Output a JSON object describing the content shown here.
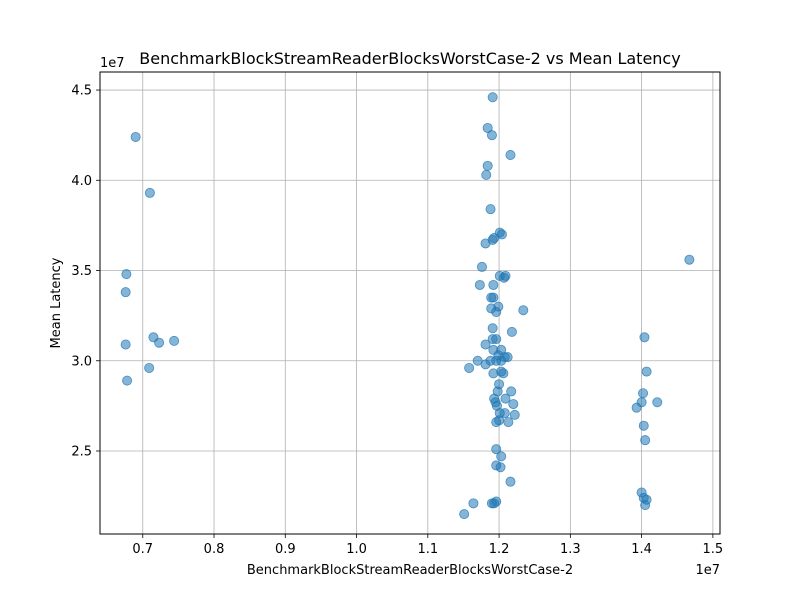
{
  "chart_data": {
    "type": "scatter",
    "title": "BenchmarkBlockStreamReaderBlocksWorstCase-2 vs Mean Latency",
    "xlabel": "BenchmarkBlockStreamReaderBlocksWorstCase-2",
    "ylabel": "Mean Latency",
    "x_offset_label": "1e7",
    "y_offset_label": "1e7",
    "xlim": [
      0.64,
      1.51
    ],
    "ylim": [
      2.04,
      4.6
    ],
    "x_ticks": [
      0.7,
      0.8,
      0.9,
      1.0,
      1.1,
      1.2,
      1.3,
      1.4,
      1.5
    ],
    "x_tick_labels": [
      "0.7",
      "0.8",
      "0.9",
      "1.0",
      "1.1",
      "1.2",
      "1.3",
      "1.4",
      "1.5"
    ],
    "y_ticks": [
      2.5,
      3.0,
      3.5,
      4.0,
      4.5
    ],
    "y_tick_labels": [
      "2.5",
      "3.0",
      "3.5",
      "4.0",
      "4.5"
    ],
    "grid": true,
    "marker_color": "#1f77b4",
    "marker_alpha": 0.55,
    "series": [
      {
        "points": [
          [
            0.69,
            4.24
          ],
          [
            0.71,
            3.93
          ],
          [
            0.677,
            3.48
          ],
          [
            0.676,
            3.38
          ],
          [
            0.676,
            3.09
          ],
          [
            0.678,
            2.89
          ],
          [
            0.715,
            3.13
          ],
          [
            0.723,
            3.1
          ],
          [
            0.744,
            3.11
          ],
          [
            0.709,
            2.96
          ],
          [
            1.191,
            4.46
          ],
          [
            1.184,
            4.29
          ],
          [
            1.19,
            4.25
          ],
          [
            1.216,
            4.14
          ],
          [
            1.184,
            4.08
          ],
          [
            1.182,
            4.03
          ],
          [
            1.188,
            3.84
          ],
          [
            1.201,
            3.71
          ],
          [
            1.204,
            3.7
          ],
          [
            1.193,
            3.68
          ],
          [
            1.191,
            3.67
          ],
          [
            1.181,
            3.65
          ],
          [
            1.176,
            3.52
          ],
          [
            1.201,
            3.47
          ],
          [
            1.207,
            3.46
          ],
          [
            1.209,
            3.47
          ],
          [
            1.173,
            3.42
          ],
          [
            1.192,
            3.42
          ],
          [
            1.189,
            3.35
          ],
          [
            1.192,
            3.35
          ],
          [
            1.199,
            3.3
          ],
          [
            1.189,
            3.29
          ],
          [
            1.196,
            3.27
          ],
          [
            1.234,
            3.28
          ],
          [
            1.191,
            3.18
          ],
          [
            1.218,
            3.16
          ],
          [
            1.191,
            3.12
          ],
          [
            1.196,
            3.12
          ],
          [
            1.181,
            3.09
          ],
          [
            1.192,
            3.06
          ],
          [
            1.203,
            3.06
          ],
          [
            1.199,
            3.03
          ],
          [
            1.208,
            3.02
          ],
          [
            1.212,
            3.02
          ],
          [
            1.17,
            3.0
          ],
          [
            1.188,
            3.0
          ],
          [
            1.196,
            3.0
          ],
          [
            1.203,
            3.0
          ],
          [
            1.181,
            2.98
          ],
          [
            1.158,
            2.96
          ],
          [
            1.192,
            2.93
          ],
          [
            1.203,
            2.94
          ],
          [
            1.206,
            2.93
          ],
          [
            1.2,
            2.87
          ],
          [
            1.198,
            2.83
          ],
          [
            1.217,
            2.83
          ],
          [
            1.193,
            2.79
          ],
          [
            1.209,
            2.79
          ],
          [
            1.195,
            2.77
          ],
          [
            1.197,
            2.75
          ],
          [
            1.22,
            2.76
          ],
          [
            1.201,
            2.71
          ],
          [
            1.208,
            2.71
          ],
          [
            1.222,
            2.7
          ],
          [
            1.196,
            2.66
          ],
          [
            1.2,
            2.67
          ],
          [
            1.213,
            2.66
          ],
          [
            1.196,
            2.51
          ],
          [
            1.203,
            2.47
          ],
          [
            1.196,
            2.42
          ],
          [
            1.202,
            2.41
          ],
          [
            1.216,
            2.33
          ],
          [
            1.196,
            2.22
          ],
          [
            1.19,
            2.21
          ],
          [
            1.193,
            2.21
          ],
          [
            1.164,
            2.21
          ],
          [
            1.151,
            2.15
          ],
          [
            1.467,
            3.56
          ],
          [
            1.404,
            3.13
          ],
          [
            1.407,
            2.94
          ],
          [
            1.402,
            2.82
          ],
          [
            1.4,
            2.77
          ],
          [
            1.422,
            2.77
          ],
          [
            1.393,
            2.74
          ],
          [
            1.403,
            2.64
          ],
          [
            1.405,
            2.56
          ],
          [
            1.4,
            2.27
          ],
          [
            1.403,
            2.24
          ],
          [
            1.407,
            2.23
          ],
          [
            1.405,
            2.2
          ]
        ]
      }
    ]
  }
}
